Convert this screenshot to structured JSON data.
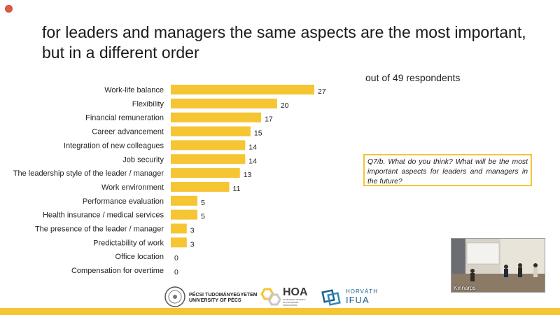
{
  "title": "for leaders and managers the same aspects are the most important, but in a different order",
  "subtitle": "out of 49 respondents",
  "question": "Q7/b. What do you think? What will be the most important aspects for leaders and managers in the future?",
  "video_caption": "Kinnarps",
  "logos": {
    "pte_line1": "PÉCSI TUDOMÁNYEGYETEM",
    "pte_line2": "UNIVERSITY OF PÉCS",
    "hoa": "HOA",
    "hoa_sub": "HUNGARIAN OFFICE & OUTSOURCING ASSOCIATION",
    "ifua_line1": "HORVÁTH",
    "ifua_line2": "IFUA"
  },
  "colors": {
    "bar": "#f5c533",
    "accent": "#f5c533"
  },
  "chart_data": {
    "type": "bar",
    "orientation": "horizontal",
    "title": "",
    "xlabel": "",
    "ylabel": "",
    "xlim": [
      0,
      27
    ],
    "grid": false,
    "categories": [
      "Work-life balance",
      "Flexibility",
      "Financial remuneration",
      "Career advancement",
      "Integration of new colleagues",
      "Job security",
      "The leadership style of the leader / manager",
      "Work environment",
      "Performance evaluation",
      "Health insurance / medical services",
      "The presence of the leader / manager",
      "Predictability of work",
      "Office location",
      "Compensation for overtime"
    ],
    "values": [
      27,
      20,
      17,
      15,
      14,
      14,
      13,
      11,
      5,
      5,
      3,
      3,
      0,
      0
    ]
  }
}
